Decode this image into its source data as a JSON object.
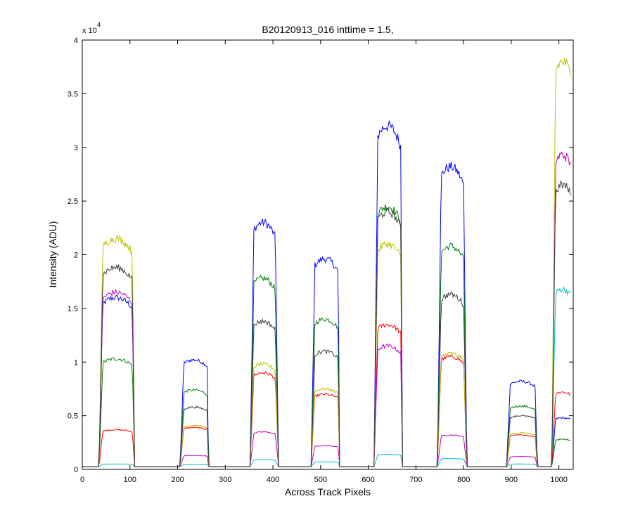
{
  "chart_data": {
    "type": "line",
    "title": "B20120913_016 inttime = 1.5,",
    "xlabel": "Across Track Pixels",
    "ylabel": "Intensity (ADU)",
    "y_exponent_label": "x 10",
    "y_exponent_power": "4",
    "xlim": [
      0,
      1030
    ],
    "ylim": [
      0,
      40000
    ],
    "xticks": [
      0,
      100,
      200,
      300,
      400,
      500,
      600,
      700,
      800,
      900,
      1000
    ],
    "yticks": [
      0,
      5000,
      10000,
      15000,
      20000,
      25000,
      30000,
      35000,
      40000
    ],
    "ytick_labels": [
      "0",
      "0.5",
      "1",
      "1.5",
      "2",
      "2.5",
      "3",
      "3.5",
      "4"
    ],
    "grid": false,
    "baseline": 250,
    "ramp_width": 8,
    "blocks": [
      {
        "start": 35,
        "end": 105,
        "end_clip": 110
      },
      {
        "start": 205,
        "end": 262,
        "end_clip": 265
      },
      {
        "start": 352,
        "end": 405,
        "end_clip": 412
      },
      {
        "start": 480,
        "end": 537,
        "end_clip": 540
      },
      {
        "start": 612,
        "end": 668,
        "end_clip": 672
      },
      {
        "start": 745,
        "end": 800,
        "end_clip": 807
      },
      {
        "start": 890,
        "end": 950,
        "end_clip": 955
      },
      {
        "start": 985,
        "end": 1030,
        "end_clip": 1030
      }
    ],
    "series": [
      {
        "color": "#0000ff",
        "peaks": [
          16000,
          10200,
          23000,
          19600,
          32000,
          28200,
          8200,
          4800
        ]
      },
      {
        "color": "#008000",
        "peaks": [
          10300,
          7400,
          17800,
          14000,
          24500,
          20800,
          5900,
          2800
        ]
      },
      {
        "color": "#ff0000",
        "peaks": [
          3700,
          3900,
          9000,
          7000,
          13500,
          10500,
          3200,
          7200
        ]
      },
      {
        "color": "#00bfbf",
        "peaks": [
          500,
          450,
          900,
          700,
          1400,
          1000,
          500,
          16800
        ]
      },
      {
        "color": "#bf00bf",
        "peaks": [
          16500,
          1300,
          3500,
          2200,
          11500,
          3200,
          1200,
          29300
        ]
      },
      {
        "color": "#bfbf00",
        "peaks": [
          21500,
          4100,
          9800,
          7500,
          21000,
          10800,
          3400,
          38000
        ]
      },
      {
        "color": "#404040",
        "peaks": [
          18800,
          5800,
          13800,
          11000,
          24000,
          16300,
          5000,
          26500
        ]
      }
    ]
  }
}
